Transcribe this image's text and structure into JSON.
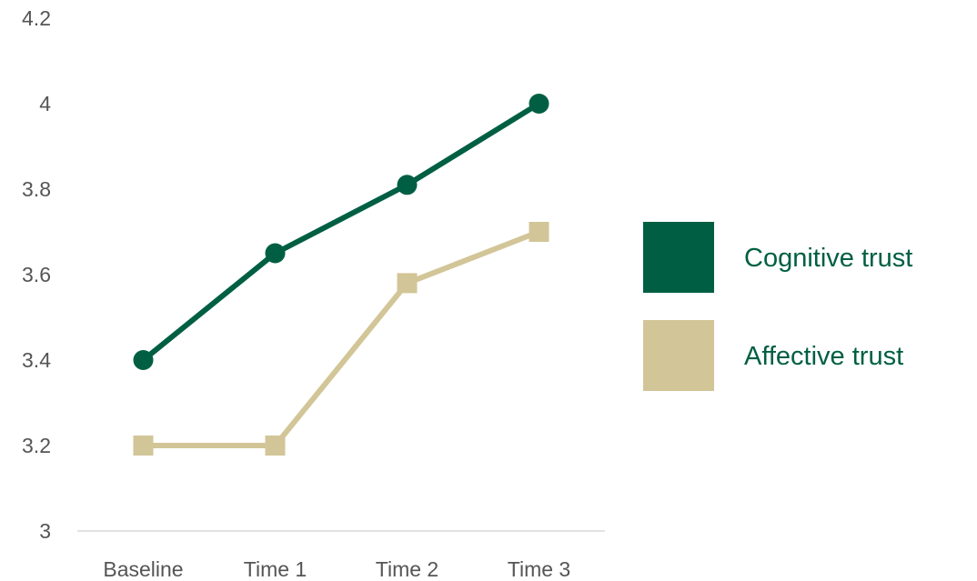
{
  "chart_data": {
    "type": "line",
    "title": "",
    "xlabel": "",
    "ylabel": "",
    "categories": [
      "Baseline",
      "Time 1",
      "Time 2",
      "Time 3"
    ],
    "ylim": [
      3,
      4.2
    ],
    "yticks": [
      3,
      3.2,
      3.4,
      3.6,
      3.8,
      4,
      4.2
    ],
    "ytick_labels": [
      "3",
      "3.2",
      "3.4",
      "3.6",
      "3.8",
      "4",
      "4.2"
    ],
    "grid": false,
    "legend_position": "right",
    "series": [
      {
        "name": "Cognitive trust",
        "values": [
          3.4,
          3.65,
          3.81,
          4.0
        ],
        "color": "#005f43",
        "marker": "circle"
      },
      {
        "name": "Affective trust",
        "values": [
          3.2,
          3.2,
          3.58,
          3.7
        ],
        "color": "#d2c597",
        "marker": "square"
      }
    ]
  }
}
